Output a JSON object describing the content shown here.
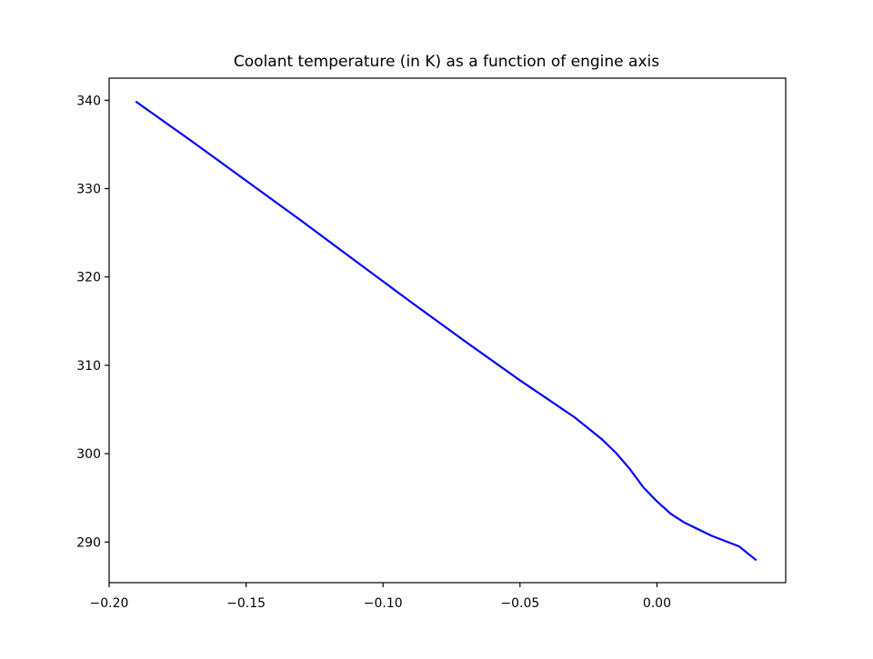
{
  "chart_data": {
    "type": "line",
    "title": "Coolant temperature (in K) as a function of engine axis",
    "xlabel": "",
    "ylabel": "",
    "xlim": [
      -0.2,
      0.047
    ],
    "ylim": [
      285.4,
      342.5
    ],
    "xticks": [
      -0.2,
      -0.15,
      -0.1,
      -0.05,
      0.0
    ],
    "xtick_labels": [
      "−0.20",
      "−0.15",
      "−0.10",
      "−0.05",
      "0.00"
    ],
    "yticks": [
      290,
      300,
      310,
      320,
      330,
      340
    ],
    "ytick_labels": [
      "290",
      "300",
      "310",
      "320",
      "330",
      "340"
    ],
    "grid": false,
    "legend": "none",
    "series": [
      {
        "color": "#0000ff",
        "x": [
          -0.19,
          -0.17,
          -0.15,
          -0.13,
          -0.11,
          -0.09,
          -0.07,
          -0.05,
          -0.04,
          -0.03,
          -0.02,
          -0.015,
          -0.01,
          -0.005,
          0.0,
          0.005,
          0.01,
          0.02,
          0.03,
          0.036
        ],
        "y": [
          339.8,
          335.4,
          330.9,
          326.4,
          321.8,
          317.2,
          312.7,
          308.3,
          306.2,
          304.1,
          301.6,
          300.1,
          298.3,
          296.2,
          294.6,
          293.2,
          292.2,
          290.7,
          289.5,
          288.0
        ]
      }
    ]
  }
}
